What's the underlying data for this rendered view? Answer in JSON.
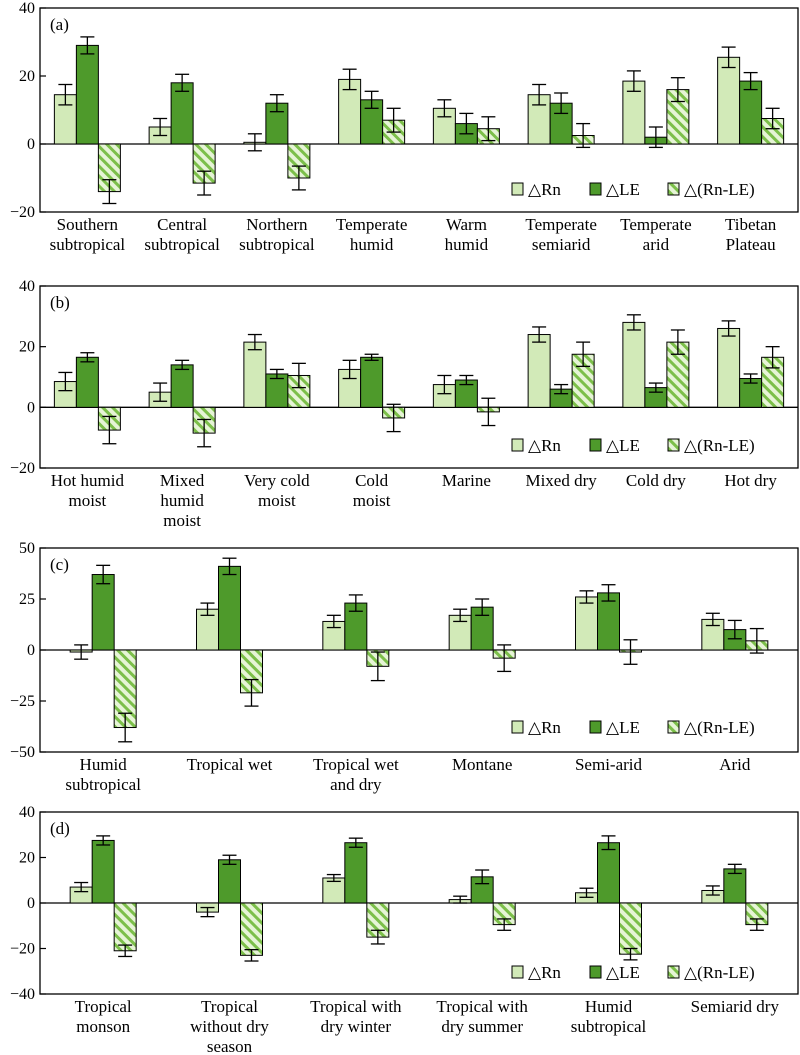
{
  "colors": {
    "rn": "#d2eab8",
    "le": "#4e9a2b",
    "hatch_light": "#e6f4d6",
    "hatch_dark": "#7cbf4a"
  },
  "legend": {
    "rn": "△Rn",
    "le": "△LE",
    "diff": "△(Rn-LE)"
  },
  "chart_data": [
    {
      "type": "bar",
      "panel": "(a)",
      "ylim": [
        -20,
        40
      ],
      "yticks": [
        -20,
        0,
        20,
        40
      ],
      "categories": [
        [
          "Southern",
          "subtropical"
        ],
        [
          "Central",
          "subtropical"
        ],
        [
          "Northern",
          "subtropical"
        ],
        [
          "Temperate",
          "humid"
        ],
        [
          "Warm",
          "humid"
        ],
        [
          "Temperate",
          "semiarid"
        ],
        [
          "Temperate",
          "arid"
        ],
        [
          "Tibetan",
          "Plateau"
        ]
      ],
      "series": [
        {
          "name": "△Rn",
          "values": [
            14.5,
            5,
            0.5,
            19,
            10.5,
            14.5,
            18.5,
            25.5
          ],
          "errors": [
            3,
            2.5,
            2.5,
            3,
            2.5,
            3,
            3,
            3
          ]
        },
        {
          "name": "△LE",
          "values": [
            29,
            18,
            12,
            13,
            6,
            12,
            2,
            18.5
          ],
          "errors": [
            2.5,
            2.5,
            2.5,
            2.5,
            3,
            3,
            3,
            2.5
          ]
        },
        {
          "name": "△(Rn-LE)",
          "values": [
            -14,
            -11.5,
            -10,
            7,
            4.5,
            2.5,
            16,
            7.5
          ],
          "errors": [
            3.5,
            3.5,
            3.5,
            3.5,
            3.5,
            3.5,
            3.5,
            3
          ]
        }
      ],
      "legend_position": "bottom-right"
    },
    {
      "type": "bar",
      "panel": "(b)",
      "ylim": [
        -20,
        40
      ],
      "yticks": [
        -20,
        0,
        20,
        40
      ],
      "categories": [
        [
          "Hot humid",
          "moist"
        ],
        [
          "Mixed",
          "humid",
          "moist"
        ],
        [
          "Very cold",
          "moist"
        ],
        [
          "Cold",
          "moist"
        ],
        [
          "Marine"
        ],
        [
          "Mixed dry"
        ],
        [
          "Cold dry"
        ],
        [
          "Hot dry"
        ]
      ],
      "series": [
        {
          "name": "△Rn",
          "values": [
            8.5,
            5,
            21.5,
            12.5,
            7.5,
            24,
            28,
            26
          ],
          "errors": [
            3,
            3,
            2.5,
            3,
            3,
            2.5,
            2.5,
            2.5
          ]
        },
        {
          "name": "△LE",
          "values": [
            16.5,
            14,
            11,
            16.5,
            9,
            6,
            6.5,
            9.5
          ],
          "errors": [
            1.5,
            1.5,
            1.5,
            1,
            1.5,
            1.5,
            1.5,
            1.5
          ]
        },
        {
          "name": "△(Rn-LE)",
          "values": [
            -7.5,
            -8.5,
            10.5,
            -3.5,
            -1.5,
            17.5,
            21.5,
            16.5
          ],
          "errors": [
            4.5,
            4.5,
            4,
            4.5,
            4.5,
            4,
            4,
            3.5
          ]
        }
      ],
      "legend_position": "bottom-right"
    },
    {
      "type": "bar",
      "panel": "(c)",
      "ylim": [
        -50,
        50
      ],
      "yticks": [
        -50,
        -25,
        0,
        25,
        50
      ],
      "categories": [
        [
          "Humid",
          "subtropical"
        ],
        [
          "Tropical wet"
        ],
        [
          "Tropical wet",
          "and dry"
        ],
        [
          "Montane"
        ],
        [
          "Semi-arid"
        ],
        [
          "Arid"
        ]
      ],
      "series": [
        {
          "name": "△Rn",
          "values": [
            -1,
            20,
            14,
            17,
            26,
            15
          ],
          "errors": [
            3.5,
            3,
            3,
            3,
            3,
            3
          ]
        },
        {
          "name": "△LE",
          "values": [
            37,
            41,
            23,
            21,
            28,
            10
          ],
          "errors": [
            4.5,
            4,
            4,
            4,
            4,
            4.5
          ]
        },
        {
          "name": "△(Rn-LE)",
          "values": [
            -38,
            -21,
            -8,
            -4,
            -1,
            4.5
          ],
          "errors": [
            7,
            6.5,
            7,
            6.5,
            6,
            6
          ]
        }
      ],
      "legend_position": "bottom-right"
    },
    {
      "type": "bar",
      "panel": "(d)",
      "ylim": [
        -40,
        40
      ],
      "yticks": [
        -40,
        -20,
        0,
        20,
        40
      ],
      "categories": [
        [
          "Tropical",
          "monson"
        ],
        [
          "Tropical",
          "without dry",
          "season"
        ],
        [
          "Tropical with",
          "dry winter"
        ],
        [
          "Tropical with",
          "dry summer"
        ],
        [
          "Humid",
          "subtropical"
        ],
        [
          "Semiarid dry"
        ]
      ],
      "series": [
        {
          "name": "△Rn",
          "values": [
            7,
            -4,
            11,
            1.5,
            4.5,
            5.5
          ],
          "errors": [
            2,
            2,
            1.5,
            1.5,
            2,
            2
          ]
        },
        {
          "name": "△LE",
          "values": [
            27.5,
            19,
            26.5,
            11.5,
            26.5,
            15
          ],
          "errors": [
            2,
            2,
            2,
            3,
            3,
            2
          ]
        },
        {
          "name": "△(Rn-LE)",
          "values": [
            -21,
            -23,
            -15,
            -9.5,
            -22.5,
            -9.5
          ],
          "errors": [
            2.5,
            2.5,
            3,
            2.5,
            2.5,
            2.5
          ]
        }
      ],
      "legend_position": "bottom-right"
    }
  ]
}
